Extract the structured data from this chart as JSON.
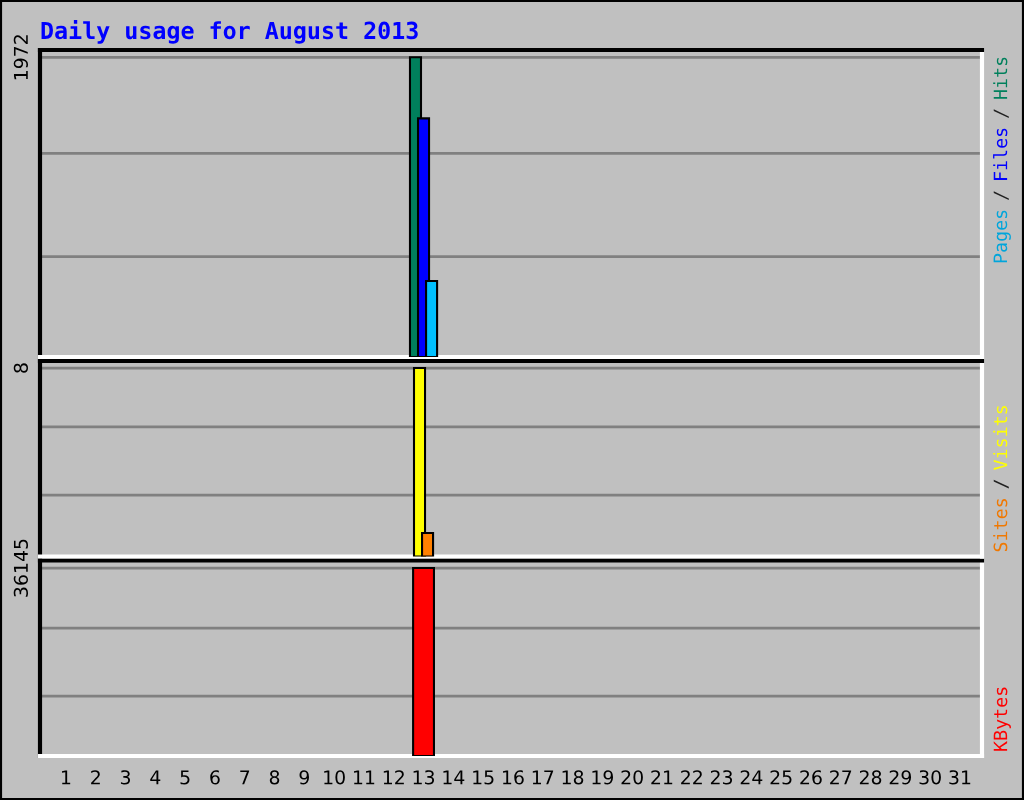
{
  "chart_data": [
    {
      "type": "bar",
      "title": "Daily usage for August 2013",
      "categories": [
        "1",
        "2",
        "3",
        "4",
        "5",
        "6",
        "7",
        "8",
        "9",
        "10",
        "11",
        "12",
        "13",
        "14",
        "15",
        "16",
        "17",
        "18",
        "19",
        "20",
        "21",
        "22",
        "23",
        "24",
        "25",
        "26",
        "27",
        "28",
        "29",
        "30",
        "31"
      ],
      "series": [
        {
          "name": "Hits",
          "color": "#00805c",
          "values": [
            null,
            null,
            null,
            null,
            null,
            null,
            null,
            null,
            null,
            null,
            null,
            null,
            1972,
            null,
            null,
            null,
            null,
            null,
            null,
            null,
            null,
            null,
            null,
            null,
            null,
            null,
            null,
            null,
            null,
            null,
            null
          ]
        },
        {
          "name": "Files",
          "color": "#0000ff",
          "values": [
            null,
            null,
            null,
            null,
            null,
            null,
            null,
            null,
            null,
            null,
            null,
            null,
            1570,
            null,
            null,
            null,
            null,
            null,
            null,
            null,
            null,
            null,
            null,
            null,
            null,
            null,
            null,
            null,
            null,
            null,
            null
          ]
        },
        {
          "name": "Pages",
          "color": "#00c0ff",
          "values": [
            null,
            null,
            null,
            null,
            null,
            null,
            null,
            null,
            null,
            null,
            null,
            null,
            500,
            null,
            null,
            null,
            null,
            null,
            null,
            null,
            null,
            null,
            null,
            null,
            null,
            null,
            null,
            null,
            null,
            null,
            null
          ]
        }
      ],
      "ylim": [
        0,
        2020
      ],
      "yticks": [
        {
          "value": 660,
          "label": null
        },
        {
          "value": 1340,
          "label": null
        },
        1972
      ],
      "grid": "y",
      "legend": "top right",
      "tick_labels": "y",
      "annotations": [
        "/",
        "/"
      ]
    },
    {
      "type": "bar",
      "categories": [
        "1",
        "2",
        "3",
        "4",
        "5",
        "6",
        "7",
        "8",
        "9",
        "10",
        "11",
        "12",
        "13",
        "14",
        "15",
        "16",
        "17",
        "18",
        "19",
        "20",
        "21",
        "22",
        "23",
        "24",
        "25",
        "26",
        "27",
        "28",
        "29",
        "30",
        "31"
      ],
      "series": [
        {
          "name": "Visits",
          "color": "#ffff00",
          "values": [
            null,
            null,
            null,
            null,
            null,
            null,
            null,
            null,
            null,
            null,
            null,
            null,
            8,
            null,
            null,
            null,
            null,
            null,
            null,
            null,
            null,
            null,
            null,
            null,
            null,
            null,
            null,
            null,
            null,
            null,
            null
          ]
        },
        {
          "name": "Sites",
          "color": "#ff8000",
          "values": [
            null,
            null,
            null,
            null,
            null,
            null,
            null,
            null,
            null,
            null,
            null,
            null,
            1,
            null,
            null,
            null,
            null,
            null,
            null,
            null,
            null,
            null,
            null,
            null,
            null,
            null,
            null,
            null,
            null,
            null,
            null
          ]
        }
      ],
      "ylim": [
        0,
        8.3
      ],
      "yticks": [
        {
          "value": 2.6,
          "label": null
        },
        {
          "value": 5.5,
          "label": null
        },
        8
      ],
      "grid": "y",
      "legend": "bottom right",
      "tick_labels": "y",
      "annotations": [
        "/"
      ]
    },
    {
      "type": "bar",
      "categories": [
        "1",
        "2",
        "3",
        "4",
        "5",
        "6",
        "7",
        "8",
        "9",
        "10",
        "11",
        "12",
        "13",
        "14",
        "15",
        "16",
        "17",
        "18",
        "19",
        "20",
        "21",
        "22",
        "23",
        "24",
        "25",
        "26",
        "27",
        "28",
        "29",
        "30",
        "31"
      ],
      "series": [
        {
          "name": "KBytes",
          "color": "#ff0000",
          "values": [
            null,
            null,
            null,
            null,
            null,
            null,
            null,
            null,
            null,
            null,
            null,
            null,
            36145,
            null,
            null,
            null,
            null,
            null,
            null,
            null,
            null,
            null,
            null,
            null,
            null,
            null,
            null,
            null,
            null,
            null,
            null
          ]
        }
      ],
      "ylim": [
        0,
        37600
      ],
      "yticks": [
        {
          "value": 11500,
          "label": null
        },
        {
          "value": 24600,
          "label": null
        },
        36145
      ],
      "grid": "y",
      "legend": "bottom right"
    }
  ]
}
